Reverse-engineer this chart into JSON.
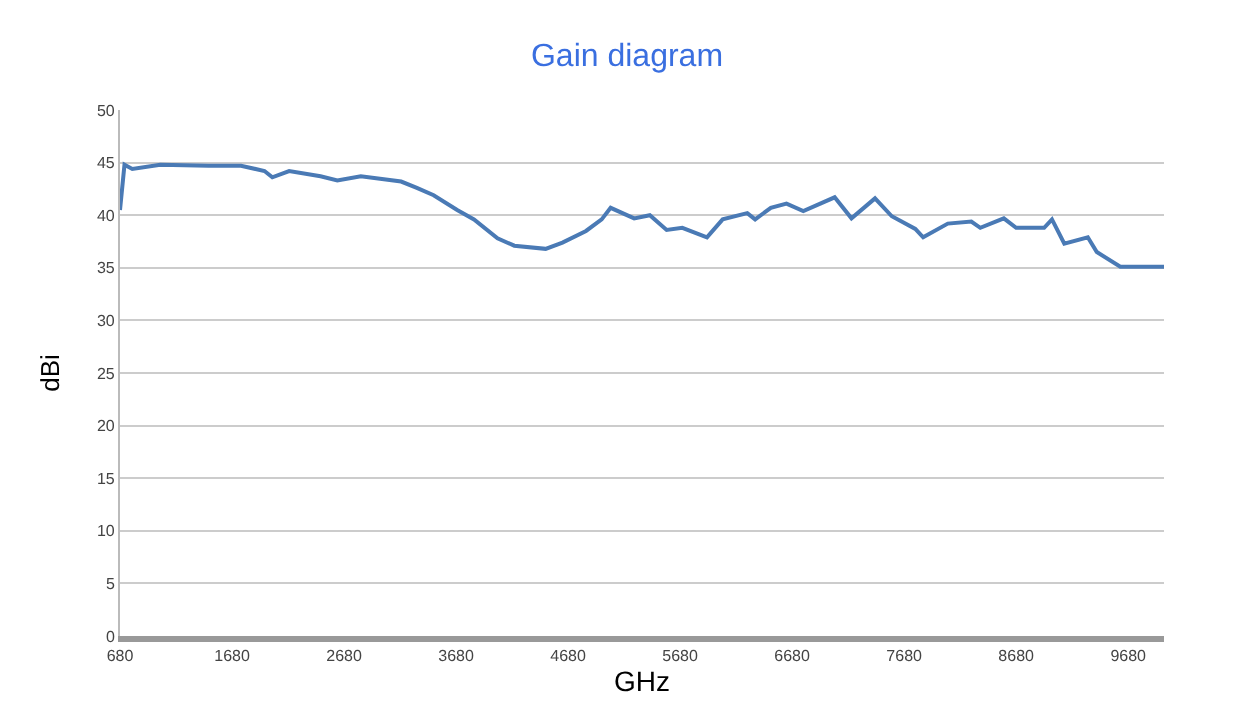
{
  "chart_data": {
    "type": "line",
    "title": "Gain diagram",
    "xlabel": "GHz",
    "ylabel": "dBi",
    "x": [
      680,
      720,
      790,
      1040,
      1470,
      1760,
      1970,
      2040,
      2190,
      2470,
      2620,
      2830,
      3190,
      3330,
      3480,
      3690,
      3840,
      4050,
      4200,
      4480,
      4630,
      4840,
      4980,
      5060,
      5270,
      5410,
      5560,
      5700,
      5920,
      6060,
      6280,
      6350,
      6490,
      6630,
      6780,
      7060,
      7210,
      7420,
      7570,
      7780,
      7850,
      8070,
      8280,
      8360,
      8570,
      8680,
      8930,
      9000,
      9110,
      9320,
      9400,
      9610,
      10000
    ],
    "series": [
      {
        "color": "#4a7ab5",
        "values": [
          40.5,
          44.8,
          44.4,
          44.8,
          44.7,
          44.7,
          44.2,
          43.6,
          44.2,
          43.7,
          43.3,
          43.7,
          43.2,
          42.6,
          41.9,
          40.5,
          39.6,
          37.8,
          37.1,
          36.8,
          37.4,
          38.5,
          39.6,
          40.7,
          39.7,
          40.0,
          38.6,
          38.8,
          37.9,
          39.6,
          40.2,
          39.6,
          40.7,
          41.1,
          40.4,
          41.7,
          39.7,
          41.6,
          39.9,
          38.7,
          37.9,
          39.2,
          39.4,
          38.8,
          39.7,
          38.8,
          38.8,
          39.6,
          37.3,
          37.9,
          36.5,
          35.1,
          35.1
        ]
      }
    ],
    "xlim": [
      680,
      10000
    ],
    "xticks": [
      680,
      1680,
      2680,
      3680,
      4680,
      5680,
      6680,
      7680,
      8680,
      9680
    ],
    "ylim": [
      0,
      50
    ],
    "yticks": [
      0,
      5,
      10,
      15,
      20,
      25,
      30,
      35,
      40,
      45,
      50
    ],
    "grid": "y",
    "legend": false,
    "marker": "none",
    "line_style": "solid"
  }
}
